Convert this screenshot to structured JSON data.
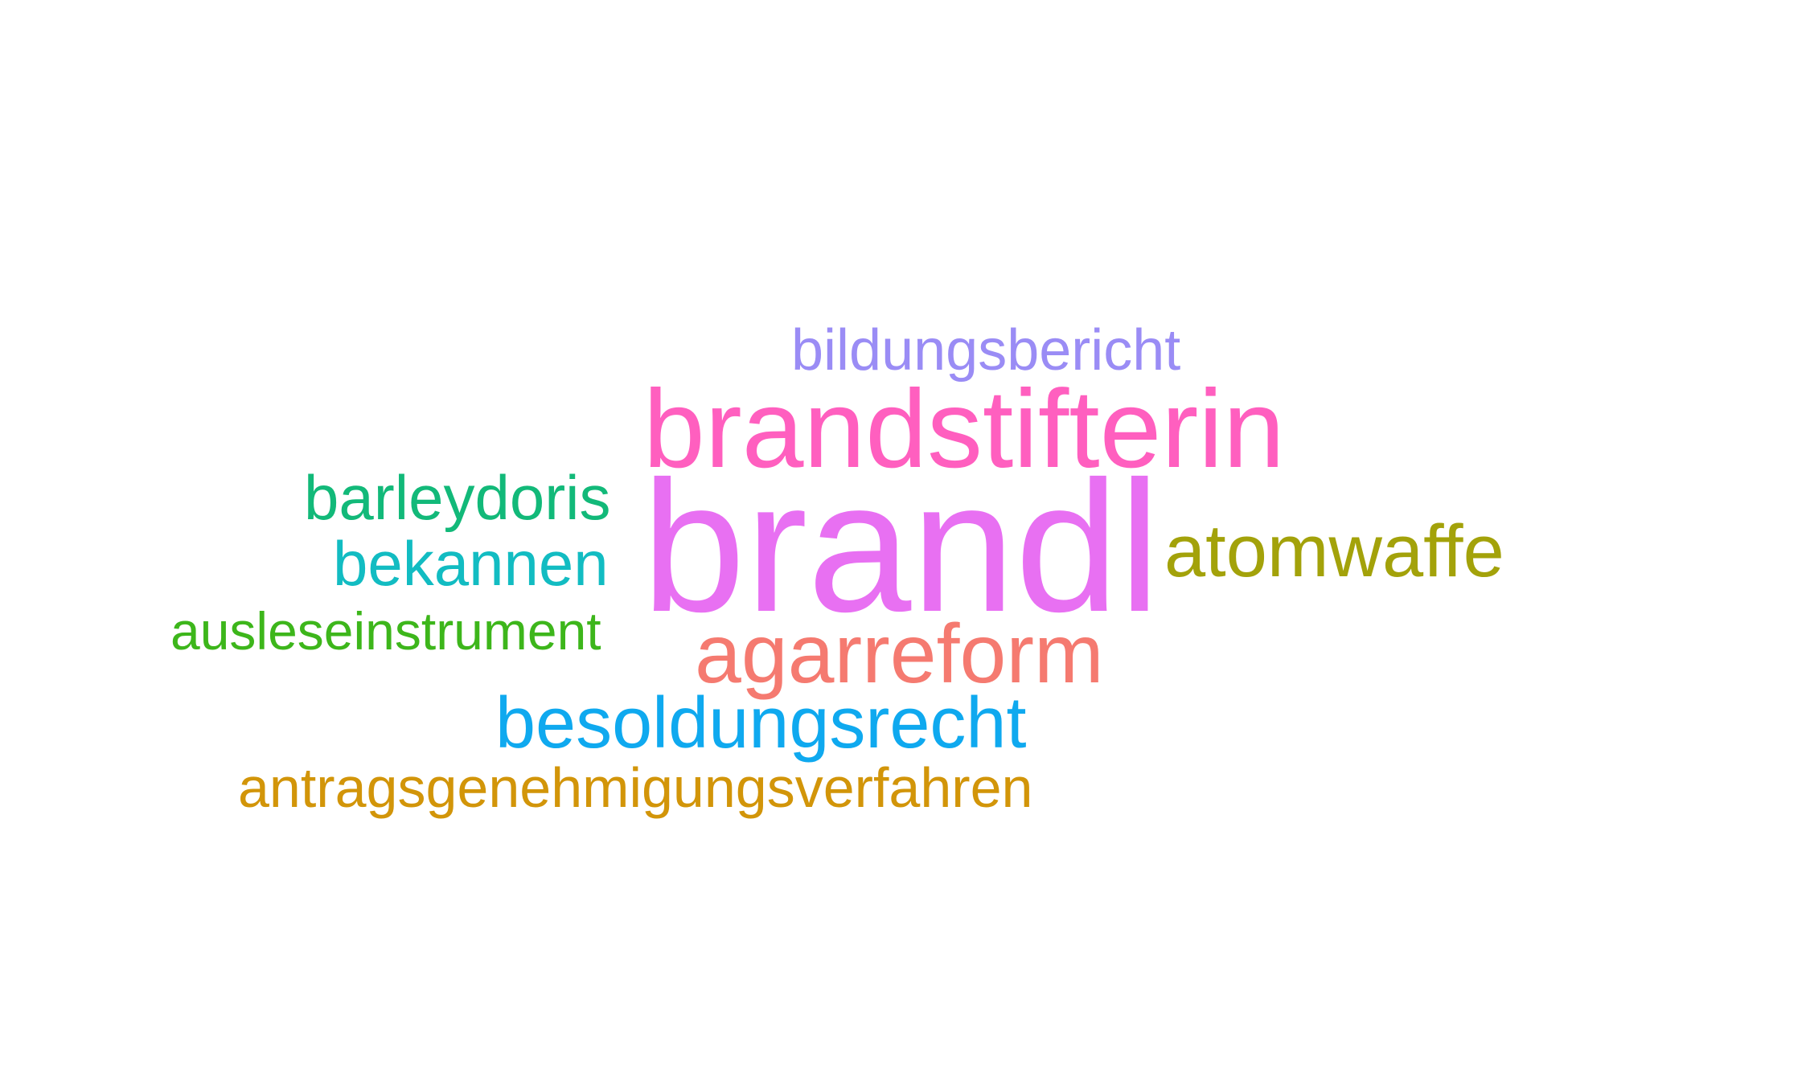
{
  "words": {
    "bildungsbericht": {
      "text": "bildungsbericht",
      "color": "#9a8cf5"
    },
    "brandstifterin": {
      "text": "brandstifterin",
      "color": "#ff5fbf"
    },
    "barleydoris": {
      "text": "barleydoris",
      "color": "#12b979"
    },
    "brandl": {
      "text": "brandl",
      "color": "#e870f2"
    },
    "atomwaffe": {
      "text": "atomwaffe",
      "color": "#a3a20a"
    },
    "bekannen": {
      "text": "bekannen",
      "color": "#12bcc2"
    },
    "ausleseinstrument": {
      "text": "ausleseinstrument",
      "color": "#3db61b"
    },
    "agarreform": {
      "text": "agarreform",
      "color": "#f57a70"
    },
    "besoldungsrecht": {
      "text": "besoldungsrecht",
      "color": "#0fa9ef"
    },
    "antragsgenehmigungsverfahren": {
      "text": "antragsgenehmigungsverfahren",
      "color": "#d29509"
    }
  }
}
